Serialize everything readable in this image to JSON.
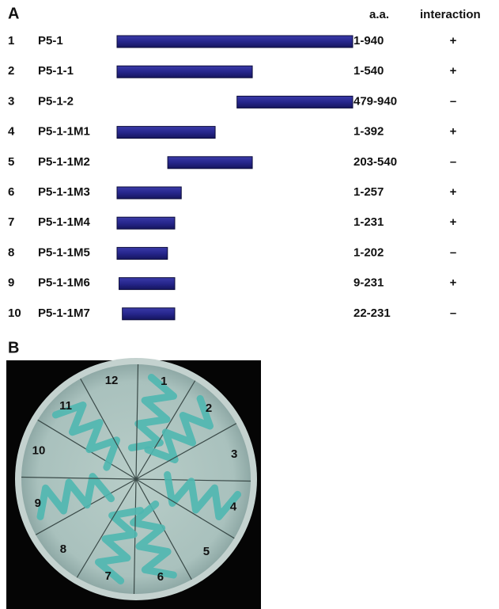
{
  "panel_a": {
    "label": "A",
    "headers": [
      "a.a.",
      "interaction"
    ],
    "rows": [
      {
        "number": "1",
        "name": "P5-1",
        "range": "1-940",
        "interaction": "+"
      },
      {
        "number": "2",
        "name": "P5-1-1",
        "range": "1-540",
        "interaction": "+"
      },
      {
        "number": "3",
        "name": "P5-1-2",
        "range": "479-940",
        "interaction": "–"
      },
      {
        "number": "4",
        "name": "P5-1-1M1",
        "range": "1-392",
        "interaction": "+"
      },
      {
        "number": "5",
        "name": "P5-1-1M2",
        "range": "203-540",
        "interaction": "–"
      },
      {
        "number": "6",
        "name": "P5-1-1M3",
        "range": "1-257",
        "interaction": "+"
      },
      {
        "number": "7",
        "name": "P5-1-1M4",
        "range": "1-231",
        "interaction": "+"
      },
      {
        "number": "8",
        "name": "P5-1-1M5",
        "range": "1-202",
        "interaction": "–"
      },
      {
        "number": "9",
        "name": "P5-1-1M6",
        "range": "9-231",
        "interaction": "+"
      },
      {
        "number": "10",
        "name": "P5-1-1M7",
        "range": "22-231",
        "interaction": "–"
      }
    ]
  },
  "panel_b": {
    "label": "B",
    "sectors": [
      "1",
      "2",
      "3",
      "4",
      "5",
      "6",
      "7",
      "8",
      "9",
      "10",
      "11",
      "12"
    ]
  }
}
